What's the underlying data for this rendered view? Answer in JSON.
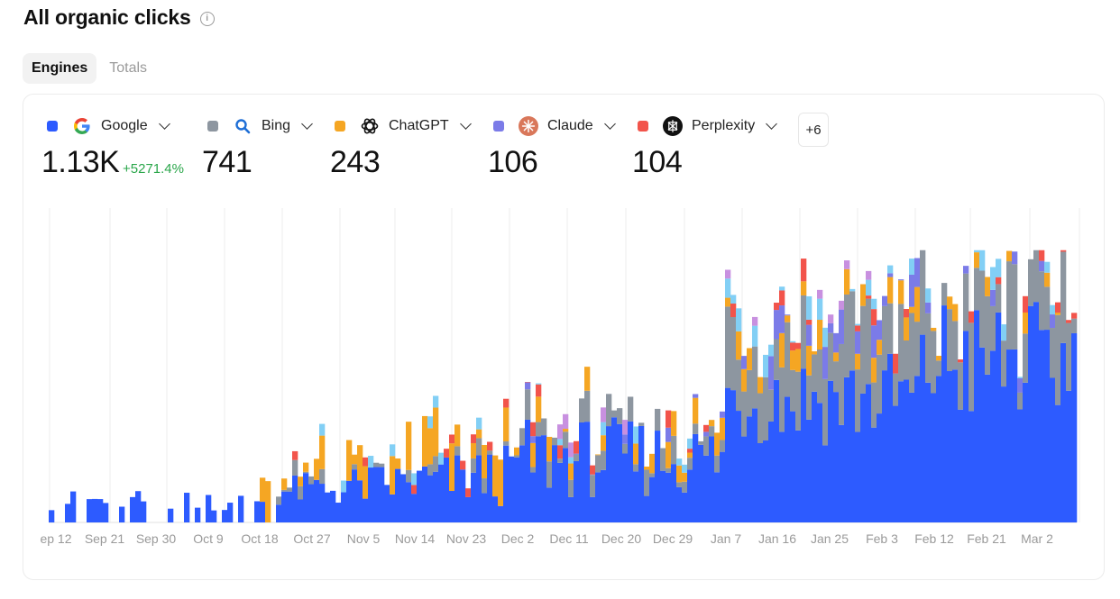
{
  "header": {
    "title": "All organic clicks",
    "info_glyph": "i"
  },
  "tabs": [
    {
      "label": "Engines",
      "active": true
    },
    {
      "label": "Totals",
      "active": false
    }
  ],
  "engines": [
    {
      "name": "Google",
      "color": "#2d5bff",
      "value": "1.13K",
      "delta": "+5271.4%",
      "icon": "google-icon"
    },
    {
      "name": "Bing",
      "color": "#8d96a0",
      "value": "741",
      "icon": "search-icon"
    },
    {
      "name": "ChatGPT",
      "color": "#f5a623",
      "value": "243",
      "icon": "chatgpt-icon"
    },
    {
      "name": "Claude",
      "color": "#7b7be8",
      "value": "106",
      "icon": "claude-icon"
    },
    {
      "name": "Perplexity",
      "color": "#f2544b",
      "value": "104",
      "icon": "perplexity-icon"
    }
  ],
  "more_label": "+6",
  "chart_data": {
    "type": "bar",
    "stacked": true,
    "grid": true,
    "x_tick_labels": [
      "ep 12",
      "Sep 21",
      "Sep 30",
      "Oct 9",
      "Oct 18",
      "Oct 27",
      "Nov 5",
      "Nov 14",
      "Nov 23",
      "Dec 2",
      "Dec 11",
      "Dec 20",
      "Dec 29",
      "Jan 7",
      "Jan 16",
      "Jan 25",
      "Feb 3",
      "Feb 12",
      "Feb 21",
      "Mar 2"
    ],
    "series_colors": {
      "google": "#2d5bff",
      "bing": "#8d96a0",
      "chatgpt": "#f5a623",
      "claude": "#7b7be8",
      "perplexity": "#f2544b",
      "other_light_blue": "#82cff5",
      "other_violet": "#c890e0"
    }
  }
}
